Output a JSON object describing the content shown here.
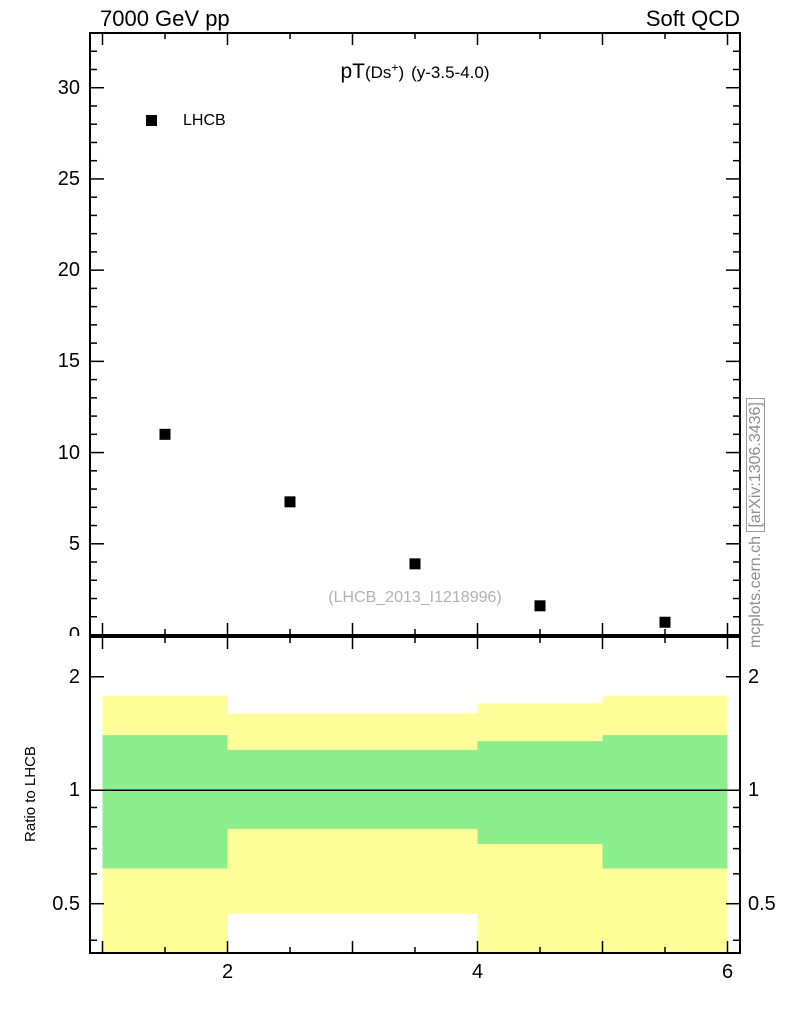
{
  "header": {
    "left": "7000 GeV pp",
    "right": "Soft QCD"
  },
  "title": {
    "observable": "pT",
    "particle_open": "(Ds",
    "particle_sup": "+",
    "particle_close": ")",
    "selection": "(y-3.5-4.0)"
  },
  "legend": {
    "entries": [
      {
        "label": "LHCB",
        "marker": "filled-square",
        "color": "#000000"
      }
    ]
  },
  "watermark": "(LHCB_2013_I1218996)",
  "side_note": {
    "plain": "mcplots.cern.ch ",
    "boxed": "[arXiv:1306.3436]"
  },
  "chart_data": {
    "type": "scatter",
    "title": "pT(Ds+) (y-3.5-4.0)",
    "xlim": [
      0.9,
      6.1
    ],
    "xticks_labeled": [
      2,
      4,
      6
    ],
    "xticks_major": [
      1,
      2,
      3,
      4,
      5,
      6
    ],
    "xticks_minor": [
      1.5,
      2.5,
      3.5,
      4.5,
      5.5
    ],
    "main_panel": {
      "ylim": [
        0,
        33
      ],
      "yticks_labeled": [
        0,
        5,
        10,
        15,
        20,
        25,
        30
      ],
      "ytick_minor_step": 1,
      "series": [
        {
          "name": "LHCB",
          "marker": "square",
          "color": "#000000",
          "x": [
            1.5,
            2.5,
            3.5,
            4.5,
            5.5
          ],
          "y": [
            11.0,
            7.3,
            3.9,
            1.6,
            0.7
          ]
        }
      ]
    },
    "ratio_panel": {
      "ylabel": "Ratio to LHCB",
      "yscale": "log",
      "ylim": [
        0.37,
        2.55
      ],
      "yticks_labeled": [
        2,
        1,
        0.5
      ],
      "yticks_minor": [
        0.4,
        0.6,
        0.7,
        0.8,
        0.9
      ],
      "reference_line": 1,
      "band_colors": {
        "outer": "#ffff99",
        "inner": "#8cee8c"
      },
      "bands": [
        {
          "x_range": [
            1,
            2
          ],
          "outer": [
            0.33,
            1.78
          ],
          "inner": [
            0.62,
            1.4
          ]
        },
        {
          "x_range": [
            2,
            4
          ],
          "outer": [
            0.47,
            1.6
          ],
          "inner": [
            0.79,
            1.28
          ]
        },
        {
          "x_range": [
            4,
            5
          ],
          "outer": [
            0.33,
            1.7
          ],
          "inner": [
            0.72,
            1.35
          ]
        },
        {
          "x_range": [
            5,
            6
          ],
          "outer": [
            0.33,
            1.78
          ],
          "inner": [
            0.62,
            1.4
          ]
        }
      ]
    }
  }
}
